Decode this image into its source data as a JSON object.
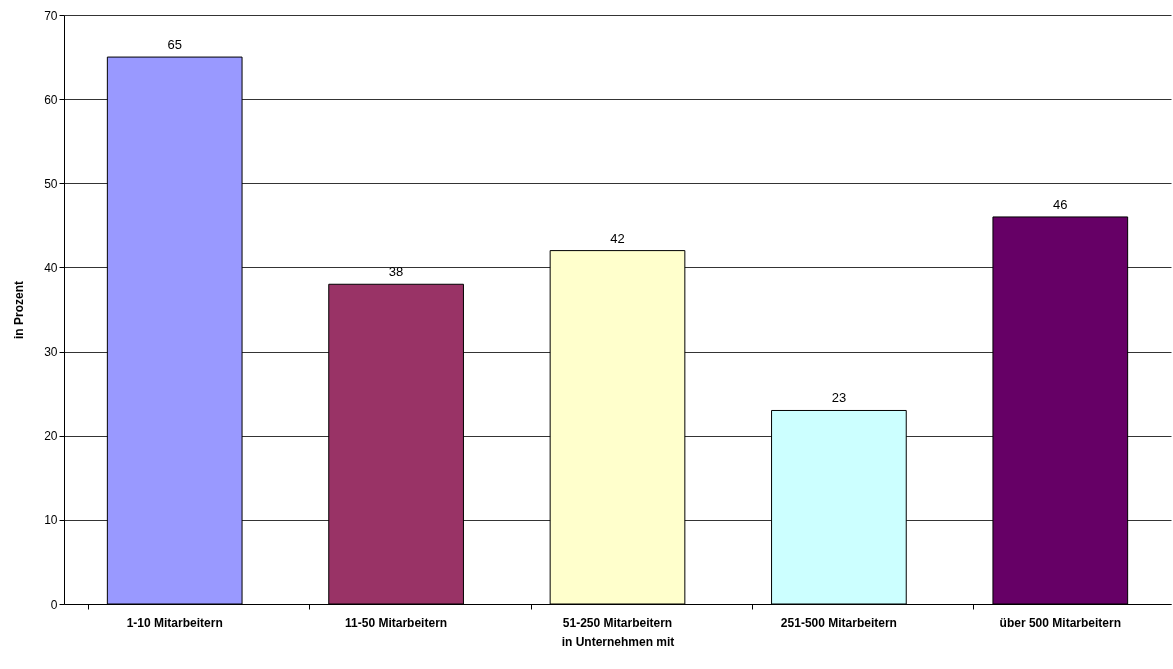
{
  "chart_data": {
    "type": "bar",
    "xlabel": "in Unternehmen mit",
    "ylabel": "in Prozent",
    "categories": [
      "1-10 Mitarbeitern",
      "11-50 Mitarbeitern",
      "51-250 Mitarbeitern",
      "251-500 Mitarbeitern",
      "über 500 Mitarbeitern"
    ],
    "values": [
      65,
      38,
      42,
      23,
      46
    ],
    "colors": [
      "#9999ff",
      "#993366",
      "#ffffcc",
      "#ccffff",
      "#660066"
    ],
    "ylim": [
      0,
      70
    ],
    "yticks": [
      0,
      10,
      20,
      30,
      40,
      50,
      60,
      70
    ],
    "grid": "y",
    "data_labels": true
  }
}
